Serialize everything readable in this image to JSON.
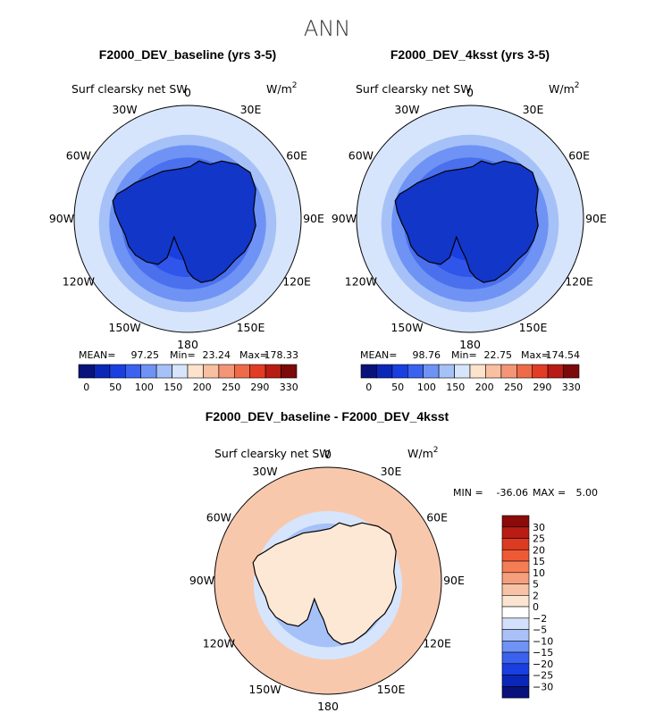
{
  "figure_title": "ANN",
  "chart_data": [
    {
      "type": "heatmap",
      "title": "F2000_DEV_baseline (yrs 3-5)",
      "variable": "Surf clearsky net SW",
      "units": "W/m",
      "units_exp": "2",
      "projection": "south polar stereographic",
      "longitude_labels": [
        "0",
        "30E",
        "60E",
        "90E",
        "120E",
        "150E",
        "180",
        "150W",
        "120W",
        "90W",
        "60W",
        "30W"
      ],
      "stats": {
        "mean_label": "MEAN=",
        "mean": "97.25",
        "min_label": "Min=",
        "min": "23.24",
        "max_label": "Max=",
        "max": "178.33"
      },
      "colorbar": {
        "orientation": "horizontal",
        "tick_labels": [
          "0",
          "50",
          "100",
          "150",
          "200",
          "250",
          "290",
          "330"
        ],
        "colors": [
          "#08127a",
          "#0b27b8",
          "#1a3fe0",
          "#3a62ee",
          "#6e93f5",
          "#a6c1f7",
          "#d6e5fb",
          "#fde2cc",
          "#f8bfa0",
          "#f49577",
          "#ef6b48",
          "#e33c25",
          "#b81c14",
          "#7c0a0a"
        ]
      },
      "rings": [
        {
          "lat": -90,
          "color": "#1236c8"
        },
        {
          "lat": -72,
          "color": "#1a3fe0"
        },
        {
          "lat": -64,
          "color": "#2f55ea"
        },
        {
          "lat": -58,
          "color": "#4a70ee"
        },
        {
          "lat": -52,
          "color": "#6e93f5"
        },
        {
          "lat": -47,
          "color": "#a6c1f7"
        },
        {
          "lat": -42,
          "color": "#d6e5fb"
        }
      ],
      "lat_limit": -35
    },
    {
      "type": "heatmap",
      "title": "F2000_DEV_4ksst (yrs 3-5)",
      "variable": "Surf clearsky net SW",
      "units": "W/m",
      "units_exp": "2",
      "projection": "south polar stereographic",
      "longitude_labels": [
        "0",
        "30E",
        "60E",
        "90E",
        "120E",
        "150E",
        "180",
        "150W",
        "120W",
        "90W",
        "60W",
        "30W"
      ],
      "stats": {
        "mean_label": "MEAN=",
        "mean": "98.76",
        "min_label": "Min=",
        "min": "22.75",
        "max_label": "Max=",
        "max": "174.54"
      },
      "colorbar": {
        "orientation": "horizontal",
        "tick_labels": [
          "0",
          "50",
          "100",
          "150",
          "200",
          "250",
          "290",
          "330"
        ],
        "colors": [
          "#08127a",
          "#0b27b8",
          "#1a3fe0",
          "#3a62ee",
          "#6e93f5",
          "#a6c1f7",
          "#d6e5fb",
          "#fde2cc",
          "#f8bfa0",
          "#f49577",
          "#ef6b48",
          "#e33c25",
          "#b81c14",
          "#7c0a0a"
        ]
      },
      "rings": [
        {
          "lat": -90,
          "color": "#1236c8"
        },
        {
          "lat": -72,
          "color": "#1a3fe0"
        },
        {
          "lat": -64,
          "color": "#2f55ea"
        },
        {
          "lat": -58,
          "color": "#4a70ee"
        },
        {
          "lat": -52,
          "color": "#6e93f5"
        },
        {
          "lat": -47,
          "color": "#a6c1f7"
        },
        {
          "lat": -42,
          "color": "#d6e5fb"
        }
      ],
      "lat_limit": -35
    },
    {
      "type": "heatmap",
      "title": "F2000_DEV_baseline - F2000_DEV_4ksst",
      "variable": "Surf clearsky net SW",
      "units": "W/m",
      "units_exp": "2",
      "projection": "south polar stereographic",
      "longitude_labels": [
        "0",
        "30E",
        "60E",
        "90E",
        "120E",
        "150E",
        "180",
        "150W",
        "120W",
        "90W",
        "60W",
        "30W"
      ],
      "stats": {
        "min_label": "MIN =",
        "min": "-36.06",
        "max_label": "MAX =",
        "max": "5.00"
      },
      "colorbar": {
        "orientation": "vertical",
        "tick_labels": [
          "30",
          "25",
          "20",
          "15",
          "10",
          "5",
          "2",
          "0",
          "−2",
          "−5",
          "−10",
          "−15",
          "−20",
          "−25",
          "−30"
        ],
        "colors": [
          "#8b0a0a",
          "#b81c14",
          "#dd3a22",
          "#ef5a35",
          "#f57d55",
          "#f69f7d",
          "#f7c2a6",
          "#fce4d2",
          "#ffffff",
          "#d3e0fb",
          "#a9c1f6",
          "#6e93f5",
          "#3a62ee",
          "#1a3fe0",
          "#0b27b8",
          "#08127a"
        ]
      },
      "rings": [
        {
          "lat": -90,
          "color": "#fde8d5"
        },
        {
          "lat": -60,
          "color": "#a6c1f7"
        },
        {
          "lat": -54,
          "color": "#d6e5fb"
        },
        {
          "lat": -49,
          "color": "#f8c8ad"
        }
      ],
      "lat_limit": -35
    }
  ]
}
